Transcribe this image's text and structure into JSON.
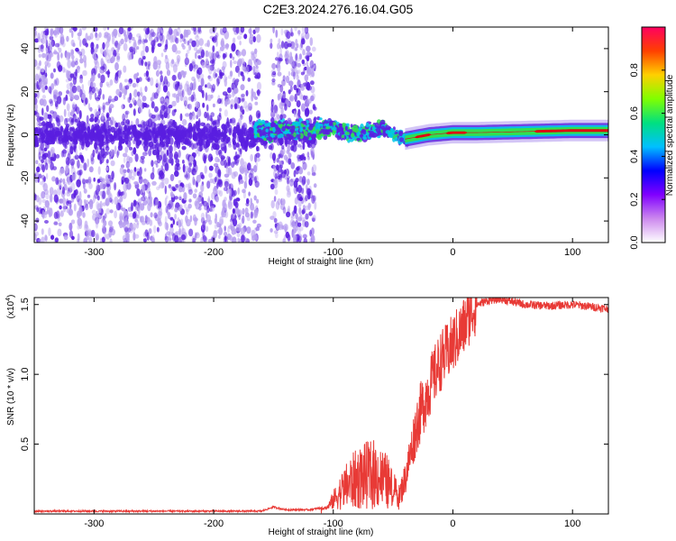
{
  "title": "C2E3.2024.276.16.04.G05",
  "colors": {
    "snr_line": "#e83a36",
    "cloud_weak": "#b8a0f0",
    "cloud_strong": "#5a1ee0",
    "ridge_cyan": "#00c8e8",
    "ridge_green": "#30e050",
    "ridge_red": "#e00010"
  },
  "chart_data": [
    {
      "type": "heatmap",
      "title": "",
      "xlabel": "Height of straight line (km)",
      "ylabel": "Frequency (Hz)",
      "xlim": [
        -350,
        130
      ],
      "ylim": [
        -50,
        50
      ],
      "x_ticks": [
        -300,
        -200,
        -100,
        0,
        100
      ],
      "y_ticks": [
        -40,
        -20,
        0,
        20,
        40
      ],
      "colorbar": {
        "label": "Normalized spectral amplitude",
        "range": [
          0,
          1
        ],
        "ticks": [
          "0.0",
          "0.2",
          "0.4",
          "0.6",
          "0.8"
        ],
        "stops": [
          "#ffffff",
          "#cc88ee",
          "#8000ff",
          "#0000ff",
          "#00c0ff",
          "#00e080",
          "#80ff00",
          "#ffd000",
          "#ff4000",
          "#ff0060"
        ]
      },
      "ridge": {
        "x": [
          -160,
          -140,
          -120,
          -100,
          -80,
          -60,
          -40,
          -20,
          0,
          20,
          60,
          100,
          130
        ],
        "freq": [
          2,
          3,
          2,
          3,
          0,
          3,
          -2,
          0,
          1,
          1,
          1.5,
          2,
          2
        ]
      }
    },
    {
      "type": "line",
      "title": "",
      "xlabel": "Height of straight line (km)",
      "ylabel": "SNR (10 * v/v)",
      "y_multiplier": "(x10",
      "y_multiplier_exp": "4",
      "xlim": [
        -350,
        130
      ],
      "ylim": [
        0,
        1.55
      ],
      "x_ticks": [
        -300,
        -200,
        -100,
        0,
        100
      ],
      "y_ticks": [
        "0.5",
        "1.0",
        "1.5"
      ],
      "series": [
        {
          "x": [
            -350,
            -300,
            -250,
            -200,
            -160,
            -150,
            -140,
            -120,
            -105,
            -95,
            -85,
            -75,
            -65,
            -55,
            -50,
            -45,
            -40,
            -35,
            -30,
            -25,
            -20,
            -15,
            -10,
            -5,
            0,
            5,
            10,
            15,
            20,
            30,
            40,
            50,
            60,
            80,
            100,
            120,
            130
          ],
          "values": [
            0.02,
            0.02,
            0.02,
            0.02,
            0.02,
            0.05,
            0.03,
            0.03,
            0.05,
            0.18,
            0.28,
            0.33,
            0.35,
            0.28,
            0.2,
            0.12,
            0.25,
            0.45,
            0.65,
            0.78,
            0.9,
            1.0,
            1.1,
            1.15,
            1.22,
            1.28,
            1.35,
            1.45,
            1.5,
            1.53,
            1.54,
            1.52,
            1.5,
            1.49,
            1.5,
            1.48,
            1.47
          ]
        }
      ]
    }
  ]
}
